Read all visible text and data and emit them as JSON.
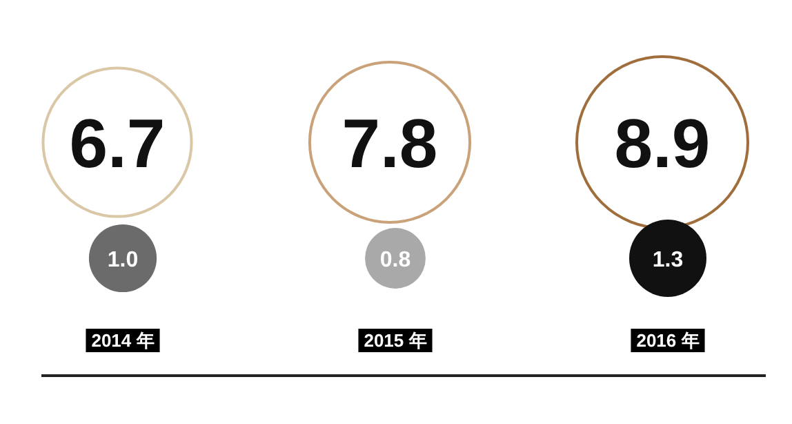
{
  "chart_data": {
    "type": "other",
    "categories": [
      "2014 年",
      "2015 年",
      "2016 年"
    ],
    "series": [
      {
        "colors": [
          "#d9c7a6",
          "#c9a27a",
          "#a06e3c"
        ],
        "values": [
          6.7,
          7.8,
          8.9
        ],
        "value_labels": [
          "6.7",
          "7.8",
          "8.9"
        ]
      },
      {
        "colors": [
          "#6b6b6b",
          "#a9a9a9",
          "#111111"
        ],
        "values": [
          1.0,
          0.8,
          1.3
        ],
        "value_labels": [
          "1.0",
          "0.8",
          "1.3"
        ]
      }
    ]
  }
}
